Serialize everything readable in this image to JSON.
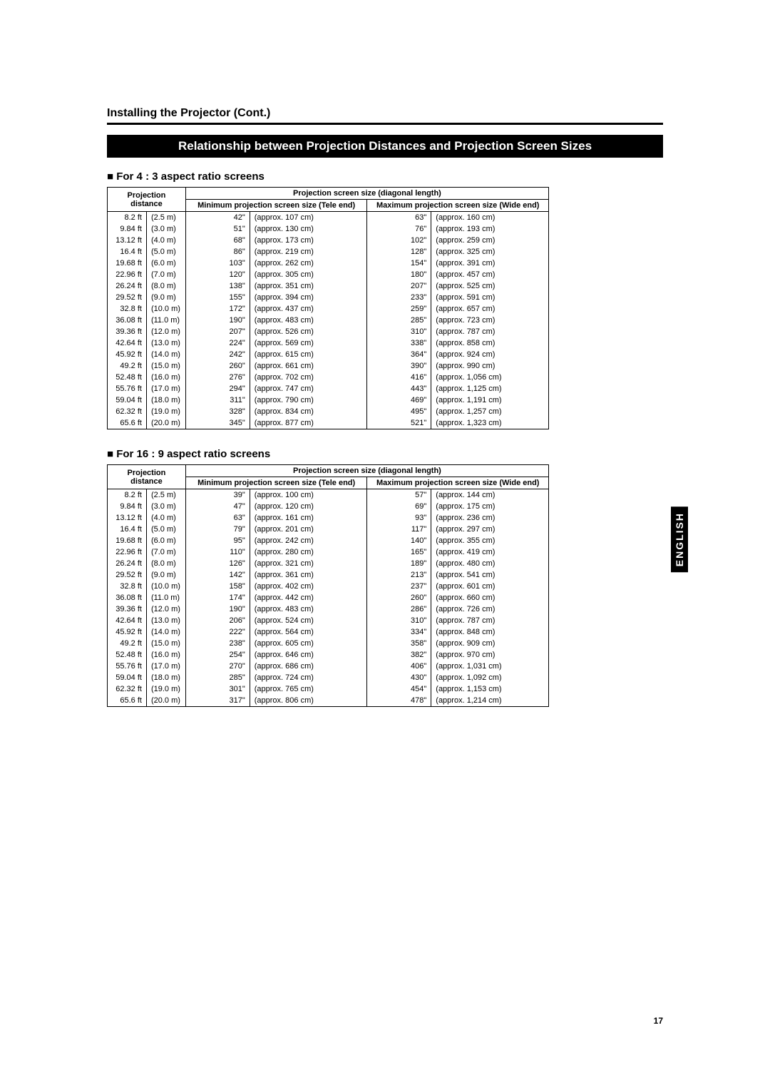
{
  "page_title": "Installing the Projector (Cont.)",
  "banner": "Relationship between Projection Distances and Projection Screen Sizes",
  "side_tab": "ENGLISH",
  "page_number": "17",
  "tables": [
    {
      "heading": "■ For 4 : 3 aspect ratio screens",
      "header_top": {
        "dist": "Projection distance",
        "span": "Projection screen size (diagonal length)",
        "min": "Minimum projection screen size (Tele end)",
        "max": "Maximum projection screen size (Wide end)"
      },
      "rows": [
        {
          "ft": "8.2 ft",
          "m": "(2.5 m)",
          "min_in": "42\"",
          "min_cm": "(approx. 107 cm)",
          "max_in": "63\"",
          "max_cm": "(approx. 160 cm)"
        },
        {
          "ft": "9.84 ft",
          "m": "(3.0 m)",
          "min_in": "51\"",
          "min_cm": "(approx. 130 cm)",
          "max_in": "76\"",
          "max_cm": "(approx. 193 cm)"
        },
        {
          "ft": "13.12 ft",
          "m": "(4.0 m)",
          "min_in": "68\"",
          "min_cm": "(approx. 173 cm)",
          "max_in": "102\"",
          "max_cm": "(approx. 259 cm)"
        },
        {
          "ft": "16.4 ft",
          "m": "(5.0 m)",
          "min_in": "86\"",
          "min_cm": "(approx. 219 cm)",
          "max_in": "128\"",
          "max_cm": "(approx. 325 cm)"
        },
        {
          "ft": "19.68 ft",
          "m": "(6.0 m)",
          "min_in": "103\"",
          "min_cm": "(approx. 262 cm)",
          "max_in": "154\"",
          "max_cm": "(approx. 391 cm)"
        },
        {
          "ft": "22.96 ft",
          "m": "(7.0 m)",
          "min_in": "120\"",
          "min_cm": "(approx. 305 cm)",
          "max_in": "180\"",
          "max_cm": "(approx. 457 cm)"
        },
        {
          "ft": "26.24 ft",
          "m": "(8.0 m)",
          "min_in": "138\"",
          "min_cm": "(approx. 351 cm)",
          "max_in": "207\"",
          "max_cm": "(approx. 525 cm)"
        },
        {
          "ft": "29.52 ft",
          "m": "(9.0 m)",
          "min_in": "155\"",
          "min_cm": "(approx. 394 cm)",
          "max_in": "233\"",
          "max_cm": "(approx. 591 cm)"
        },
        {
          "ft": "32.8 ft",
          "m": "(10.0 m)",
          "min_in": "172\"",
          "min_cm": "(approx. 437 cm)",
          "max_in": "259\"",
          "max_cm": "(approx. 657 cm)"
        },
        {
          "ft": "36.08 ft",
          "m": "(11.0 m)",
          "min_in": "190\"",
          "min_cm": "(approx. 483 cm)",
          "max_in": "285\"",
          "max_cm": "(approx. 723 cm)"
        },
        {
          "ft": "39.36 ft",
          "m": "(12.0 m)",
          "min_in": "207\"",
          "min_cm": "(approx. 526 cm)",
          "max_in": "310\"",
          "max_cm": "(approx. 787 cm)"
        },
        {
          "ft": "42.64 ft",
          "m": "(13.0 m)",
          "min_in": "224\"",
          "min_cm": "(approx. 569 cm)",
          "max_in": "338\"",
          "max_cm": "(approx. 858 cm)"
        },
        {
          "ft": "45.92 ft",
          "m": "(14.0 m)",
          "min_in": "242\"",
          "min_cm": "(approx. 615 cm)",
          "max_in": "364\"",
          "max_cm": "(approx. 924 cm)"
        },
        {
          "ft": "49.2 ft",
          "m": "(15.0 m)",
          "min_in": "260\"",
          "min_cm": "(approx. 661 cm)",
          "max_in": "390\"",
          "max_cm": "(approx. 990 cm)"
        },
        {
          "ft": "52.48 ft",
          "m": "(16.0 m)",
          "min_in": "276\"",
          "min_cm": "(approx. 702 cm)",
          "max_in": "416\"",
          "max_cm": "(approx. 1,056 cm)"
        },
        {
          "ft": "55.76 ft",
          "m": "(17.0 m)",
          "min_in": "294\"",
          "min_cm": "(approx. 747 cm)",
          "max_in": "443\"",
          "max_cm": "(approx. 1,125 cm)"
        },
        {
          "ft": "59.04 ft",
          "m": "(18.0 m)",
          "min_in": "311\"",
          "min_cm": "(approx. 790 cm)",
          "max_in": "469\"",
          "max_cm": "(approx. 1,191 cm)"
        },
        {
          "ft": "62.32 ft",
          "m": "(19.0 m)",
          "min_in": "328\"",
          "min_cm": "(approx. 834 cm)",
          "max_in": "495\"",
          "max_cm": "(approx. 1,257 cm)"
        },
        {
          "ft": "65.6 ft",
          "m": "(20.0 m)",
          "min_in": "345\"",
          "min_cm": "(approx. 877 cm)",
          "max_in": "521\"",
          "max_cm": "(approx. 1,323 cm)"
        }
      ]
    },
    {
      "heading": "■ For 16 : 9 aspect ratio screens",
      "header_top": {
        "dist": "Projection distance",
        "span": "Projection screen size (diagonal length)",
        "min": "Minimum projection screen size (Tele end)",
        "max": "Maximum projection screen size (Wide end)"
      },
      "rows": [
        {
          "ft": "8.2 ft",
          "m": "(2.5 m)",
          "min_in": "39\"",
          "min_cm": "(approx. 100 cm)",
          "max_in": "57\"",
          "max_cm": "(approx. 144 cm)"
        },
        {
          "ft": "9.84 ft",
          "m": "(3.0 m)",
          "min_in": "47\"",
          "min_cm": "(approx. 120 cm)",
          "max_in": "69\"",
          "max_cm": "(approx. 175 cm)"
        },
        {
          "ft": "13.12 ft",
          "m": "(4.0 m)",
          "min_in": "63\"",
          "min_cm": "(approx. 161 cm)",
          "max_in": "93\"",
          "max_cm": "(approx. 236 cm)"
        },
        {
          "ft": "16.4 ft",
          "m": "(5.0 m)",
          "min_in": "79\"",
          "min_cm": "(approx. 201 cm)",
          "max_in": "117\"",
          "max_cm": "(approx. 297 cm)"
        },
        {
          "ft": "19.68 ft",
          "m": "(6.0 m)",
          "min_in": "95\"",
          "min_cm": "(approx. 242 cm)",
          "max_in": "140\"",
          "max_cm": "(approx. 355 cm)"
        },
        {
          "ft": "22.96 ft",
          "m": "(7.0 m)",
          "min_in": "110\"",
          "min_cm": "(approx. 280 cm)",
          "max_in": "165\"",
          "max_cm": "(approx. 419 cm)"
        },
        {
          "ft": "26.24 ft",
          "m": "(8.0 m)",
          "min_in": "126\"",
          "min_cm": "(approx. 321 cm)",
          "max_in": "189\"",
          "max_cm": "(approx. 480 cm)"
        },
        {
          "ft": "29.52 ft",
          "m": "(9.0 m)",
          "min_in": "142\"",
          "min_cm": "(approx. 361 cm)",
          "max_in": "213\"",
          "max_cm": "(approx. 541 cm)"
        },
        {
          "ft": "32.8 ft",
          "m": "(10.0 m)",
          "min_in": "158\"",
          "min_cm": "(approx. 402 cm)",
          "max_in": "237\"",
          "max_cm": "(approx. 601 cm)"
        },
        {
          "ft": "36.08 ft",
          "m": "(11.0 m)",
          "min_in": "174\"",
          "min_cm": "(approx. 442 cm)",
          "max_in": "260\"",
          "max_cm": "(approx. 660 cm)"
        },
        {
          "ft": "39.36 ft",
          "m": "(12.0 m)",
          "min_in": "190\"",
          "min_cm": "(approx. 483 cm)",
          "max_in": "286\"",
          "max_cm": "(approx. 726 cm)"
        },
        {
          "ft": "42.64 ft",
          "m": "(13.0 m)",
          "min_in": "206\"",
          "min_cm": "(approx. 524 cm)",
          "max_in": "310\"",
          "max_cm": "(approx. 787 cm)"
        },
        {
          "ft": "45.92 ft",
          "m": "(14.0 m)",
          "min_in": "222\"",
          "min_cm": "(approx. 564 cm)",
          "max_in": "334\"",
          "max_cm": "(approx. 848 cm)"
        },
        {
          "ft": "49.2 ft",
          "m": "(15.0 m)",
          "min_in": "238\"",
          "min_cm": "(approx. 605 cm)",
          "max_in": "358\"",
          "max_cm": "(approx. 909 cm)"
        },
        {
          "ft": "52.48 ft",
          "m": "(16.0 m)",
          "min_in": "254\"",
          "min_cm": "(approx. 646 cm)",
          "max_in": "382\"",
          "max_cm": "(approx. 970 cm)"
        },
        {
          "ft": "55.76 ft",
          "m": "(17.0 m)",
          "min_in": "270\"",
          "min_cm": "(approx. 686 cm)",
          "max_in": "406\"",
          "max_cm": "(approx. 1,031 cm)"
        },
        {
          "ft": "59.04 ft",
          "m": "(18.0 m)",
          "min_in": "285\"",
          "min_cm": "(approx. 724 cm)",
          "max_in": "430\"",
          "max_cm": "(approx. 1,092 cm)"
        },
        {
          "ft": "62.32 ft",
          "m": "(19.0 m)",
          "min_in": "301\"",
          "min_cm": "(approx. 765 cm)",
          "max_in": "454\"",
          "max_cm": "(approx. 1,153 cm)"
        },
        {
          "ft": "65.6 ft",
          "m": "(20.0 m)",
          "min_in": "317\"",
          "min_cm": "(approx. 806 cm)",
          "max_in": "478\"",
          "max_cm": "(approx. 1,214 cm)"
        }
      ]
    }
  ]
}
